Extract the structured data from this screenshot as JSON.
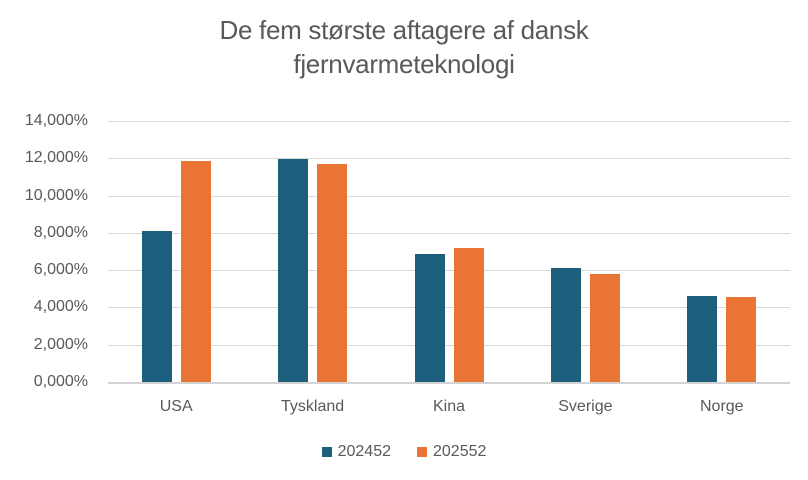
{
  "chart_data": {
    "type": "bar",
    "title": "De fem største aftagere af dansk fjernvarmeteknologi",
    "categories": [
      "USA",
      "Tyskland",
      "Kina",
      "Sverige",
      "Norge"
    ],
    "series": [
      {
        "name": "202452",
        "color": "#1E5F7E",
        "values": [
          8100,
          11950,
          6850,
          6100,
          4620
        ]
      },
      {
        "name": "202552",
        "color": "#E97434",
        "values": [
          11830,
          11720,
          7210,
          5790,
          4550
        ]
      }
    ],
    "xlabel": "",
    "ylabel": "",
    "ylim": [
      0,
      14000
    ],
    "ytick_step": 2000,
    "ytick_labels": [
      "0,000%",
      "2,000%",
      "4,000%",
      "6,000%",
      "8,000%",
      "10,000%",
      "12,000%",
      "14,000%"
    ],
    "grid": true,
    "legend_position": "bottom",
    "colors": {
      "text": "#595959",
      "gridline": "#D9D9D9",
      "axis_line": "#D3D3D3",
      "background": "#FFFFFF"
    }
  }
}
